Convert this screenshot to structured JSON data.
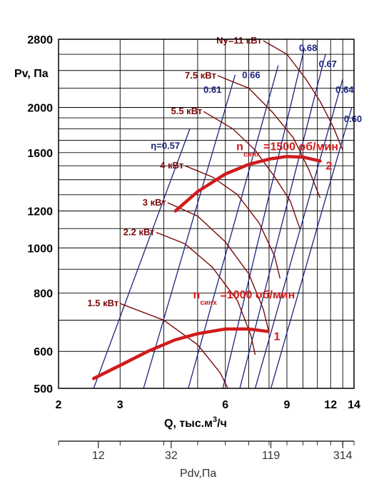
{
  "chart_data": {
    "type": "line",
    "x_scale": "log",
    "y_scale": "log",
    "xlim": [
      2,
      14
    ],
    "ylim": [
      500,
      2800
    ],
    "x_ticks": [
      2,
      3,
      6,
      9,
      12,
      14
    ],
    "y_ticks": [
      500,
      600,
      800,
      1000,
      1200,
      1600,
      2000,
      2800
    ],
    "x_grid": [
      2,
      3,
      4,
      5,
      6,
      7,
      8,
      9,
      10,
      11,
      12,
      13,
      14
    ],
    "y_grid": [
      500,
      600,
      700,
      800,
      900,
      1000,
      1100,
      1200,
      1300,
      1400,
      1500,
      1600,
      1700,
      1800,
      1900,
      2000,
      2200,
      2400,
      2600,
      2800
    ],
    "xlabel_main": "Q, тыс.м",
    "xlabel_sup": "3",
    "xlabel_tail": "/ч",
    "ylabel": "Pv, Па",
    "pdv_axis": {
      "label": "Pdv,Па",
      "ticks": [
        {
          "label": "12",
          "q": 2.6
        },
        {
          "label": "32",
          "q": 4.2
        },
        {
          "label": "119",
          "q": 8.1
        },
        {
          "label": "314",
          "q": 13.0
        }
      ]
    },
    "series": [
      {
        "label_n": "n",
        "label_sub": "синх",
        "label_rest": "=1000 об/мин",
        "curve_id": "1",
        "color": "#d11b1b",
        "points": [
          [
            2.52,
            525
          ],
          [
            3.0,
            560
          ],
          [
            3.6,
            600
          ],
          [
            4.3,
            635
          ],
          [
            5.0,
            655
          ],
          [
            6.0,
            670
          ],
          [
            7.0,
            670
          ],
          [
            7.95,
            662
          ]
        ]
      },
      {
        "label_n": "n",
        "label_sub": "синх",
        "label_rest": "=1500 об/мин",
        "curve_id": "2",
        "color": "#d11b1b",
        "points": [
          [
            4.32,
            1200
          ],
          [
            5.0,
            1320
          ],
          [
            6.0,
            1440
          ],
          [
            7.0,
            1510
          ],
          [
            8.0,
            1550
          ],
          [
            9.0,
            1570
          ],
          [
            10.0,
            1565
          ],
          [
            11.2,
            1535
          ]
        ]
      }
    ],
    "power_lines": [
      {
        "label": "1.5 кВт",
        "color": "#7a0a0a",
        "points": [
          [
            3.0,
            760
          ],
          [
            4.0,
            700
          ],
          [
            5.0,
            620
          ],
          [
            5.8,
            540
          ],
          [
            6.1,
            500
          ]
        ]
      },
      {
        "label": "2.2 кВт",
        "color": "#7a0a0a",
        "points": [
          [
            3.8,
            1080
          ],
          [
            4.6,
            1020
          ],
          [
            5.5,
            910
          ],
          [
            6.5,
            770
          ],
          [
            7.1,
            650
          ],
          [
            7.3,
            590
          ]
        ]
      },
      {
        "label": "3 кВт",
        "color": "#7a0a0a",
        "points": [
          [
            4.1,
            1250
          ],
          [
            5.0,
            1170
          ],
          [
            6.0,
            1030
          ],
          [
            7.0,
            880
          ],
          [
            7.7,
            740
          ],
          [
            8.0,
            660
          ]
        ]
      },
      {
        "label": "4 кВт",
        "color": "#7a0a0a",
        "points": [
          [
            4.6,
            1500
          ],
          [
            5.5,
            1420
          ],
          [
            6.5,
            1300
          ],
          [
            7.5,
            1130
          ],
          [
            8.3,
            960
          ],
          [
            8.6,
            860
          ]
        ]
      },
      {
        "label": "5.5 кВт",
        "color": "#7a0a0a",
        "points": [
          [
            5.2,
            1960
          ],
          [
            6.3,
            1800
          ],
          [
            7.3,
            1620
          ],
          [
            8.3,
            1420
          ],
          [
            9.2,
            1260
          ],
          [
            9.8,
            1100
          ]
        ]
      },
      {
        "label": "7.5 кВт",
        "color": "#7a0a0a",
        "points": [
          [
            5.7,
            2340
          ],
          [
            7.0,
            2200
          ],
          [
            8.2,
            1950
          ],
          [
            9.4,
            1720
          ],
          [
            10.4,
            1470
          ],
          [
            11.2,
            1280
          ]
        ]
      },
      {
        "label": "Ny=11 кВт",
        "color": "#7a0a0a",
        "points": [
          [
            7.7,
            2780
          ],
          [
            9.0,
            2600
          ],
          [
            10.2,
            2300
          ],
          [
            11.2,
            2060
          ],
          [
            12.2,
            1820
          ],
          [
            13.0,
            1620
          ]
        ]
      }
    ],
    "efficiency_lines": [
      {
        "label": "η=0.57",
        "color": "#1a237e",
        "points": [
          [
            2.52,
            500
          ],
          [
            4.75,
            1800
          ]
        ]
      },
      {
        "label": "0.61",
        "color": "#1a237e",
        "points": [
          [
            3.5,
            500
          ],
          [
            6.4,
            2350
          ]
        ]
      },
      {
        "label": "0.66",
        "color": "#1a237e",
        "points": [
          [
            4.7,
            500
          ],
          [
            8.5,
            2460
          ]
        ]
      },
      {
        "label": "0.68",
        "color": "#1a237e",
        "points": [
          [
            5.9,
            500
          ],
          [
            10.1,
            2680
          ]
        ]
      },
      {
        "label": "0.67",
        "color": "#1a237e",
        "points": [
          [
            6.6,
            500
          ],
          [
            11.6,
            2600
          ]
        ]
      },
      {
        "label": "0.64",
        "color": "#1a237e",
        "points": [
          [
            7.3,
            500
          ],
          [
            13.0,
            2300
          ]
        ]
      },
      {
        "label": "0.60",
        "color": "#1a237e",
        "points": [
          [
            8.1,
            500
          ],
          [
            13.8,
            2000
          ]
        ]
      }
    ]
  }
}
